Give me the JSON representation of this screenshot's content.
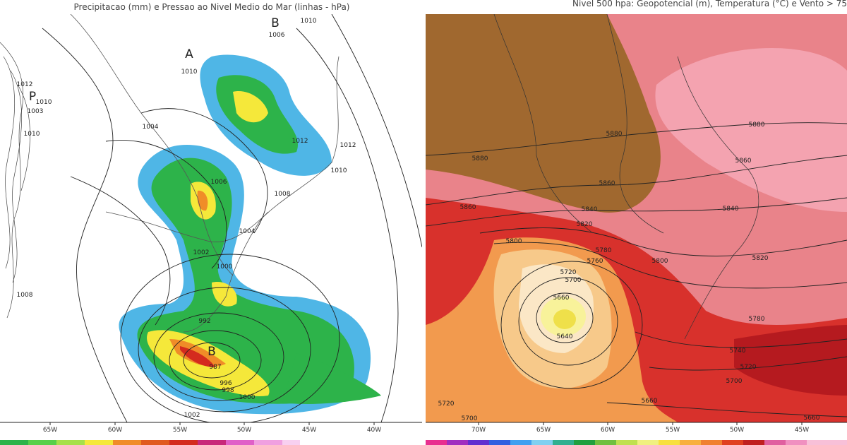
{
  "panels": [
    {
      "title": "Precipitacao (mm) e Pressao ao Nivel Medio do Mar (linhas - hPa)",
      "x_labels": [
        "65W",
        "60W",
        "55W",
        "50W",
        "45W",
        "40W"
      ],
      "pressure_centers": [
        "A",
        "B",
        "P",
        "B"
      ],
      "contour_labels": [
        "1010",
        "1006",
        "1010",
        "1012",
        "1010",
        "1003",
        "1010",
        "1004",
        "1012",
        "1012",
        "1010",
        "1006",
        "1008",
        "1004",
        "1002",
        "1000",
        "1008",
        "992",
        "987",
        "996",
        "998",
        "1000",
        "1002"
      ]
    },
    {
      "title": "Nivel 500 hpa: Geopotencial (m), Temperatura (°C) e Vento > 75",
      "x_labels": [
        "70W",
        "65W",
        "60W",
        "55W",
        "50W",
        "45W"
      ],
      "contour_labels": [
        "5880",
        "5880",
        "5880",
        "5860",
        "5860",
        "5860",
        "5840",
        "5840",
        "5820",
        "5820",
        "5800",
        "5800",
        "5780",
        "5760",
        "5780",
        "5720",
        "5700",
        "5660",
        "5640",
        "5740",
        "5720",
        "5700",
        "5660",
        "5720",
        "5700",
        "5660"
      ]
    }
  ]
}
